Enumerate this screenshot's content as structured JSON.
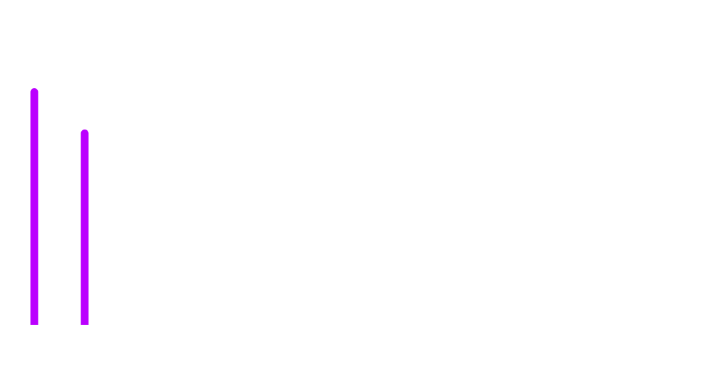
{
  "chart_data": {
    "type": "bar",
    "orientation": "vertical",
    "style": "rounded-top",
    "color": "#bb00ff",
    "background": "#ffffff",
    "axes_visible": false,
    "grid": false,
    "values": [
      0.86,
      0.71
    ],
    "ylim": [
      0,
      1
    ]
  }
}
